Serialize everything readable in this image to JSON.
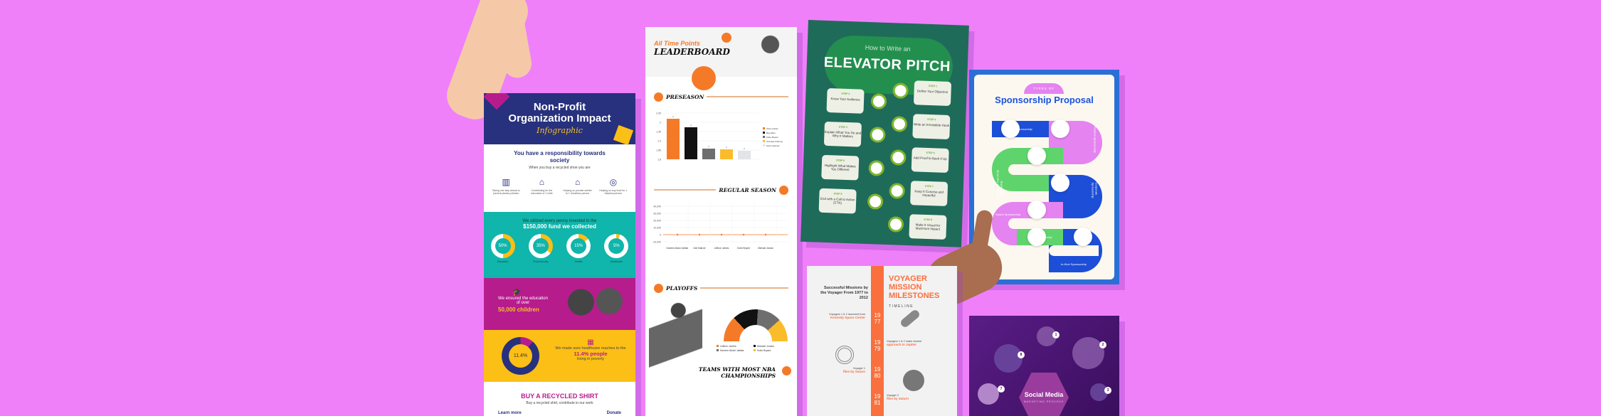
{
  "background_color": "#ef80f9",
  "nonprofit": {
    "title": "Non-Profit Organization Impact",
    "subtitle": "Infographic",
    "resp_heading": "You have a responsibility towards society",
    "resp_sub": "When you buy a recycled shoe you are",
    "actions": [
      "Taking one step ahead to prevent plastic pollution",
      "Contributing for the education of 1 child",
      "Helping us provide shelter to 1 homeless person",
      "Helping us buy food for 1 helpless person"
    ],
    "fund_line1": "We utilized every penny invested in the",
    "fund_line2": "$150,000 fund we collected",
    "donuts": [
      {
        "label": "Education",
        "value": "50%",
        "pct": 50
      },
      {
        "label": "Food security",
        "value": "35%",
        "pct": 35
      },
      {
        "label": "Shelter",
        "value": "15%",
        "pct": 15
      },
      {
        "label": "Healthcare",
        "value": "5%",
        "pct": 5
      }
    ],
    "edu_line": "We ensured the education of over",
    "edu_big": "50,000 children",
    "health_donut": "11.4%",
    "health_line": "We made sure healthcare reaches to the",
    "health_big": "11.4% people",
    "health_end": "living in poverty",
    "shirt_heading": "BUY A RECYCLED SHIRT",
    "shirt_sub": "Buy a recycled shirt, contribute in our work",
    "learn_more": "Learn more",
    "donate": "Donate"
  },
  "leaderboard": {
    "title_top": "All Time Points",
    "title": "LEADERBOARD",
    "preseason": "PRESEASON",
    "preseason_legend": [
      "Vince Carter",
      "Ray Allen",
      "Kobe Bryant",
      "Carmelo Anthony",
      "Kevin Garnett"
    ],
    "preseason_colors": [
      "#f57a28",
      "#111111",
      "#6e6e6e",
      "#fbbc2c",
      "#e2e4ea"
    ],
    "preseason_yticks": [
      "2.05",
      "2",
      "1.95",
      "1.9",
      "1.85",
      "1.8"
    ],
    "regular": "REGULAR SEASON",
    "regular_yticks": [
      "40,000",
      "30,000",
      "20,000",
      "10,000",
      "0",
      "-10,000"
    ],
    "regular_x": [
      "Kareem Abdul Jabbar",
      "Karl Malone",
      "LeBron James",
      "Kobe Bryant",
      "Michael Jordan"
    ],
    "playoffs": "PLAYOFFS",
    "playoffs_legend": [
      "LeBron James",
      "Michael Jordan",
      "Kareem Abdul Jabbar",
      "Kobe Bryant"
    ],
    "teams": "TEAMS WITH MOST NBA CHAMPIONSHIPS"
  },
  "elevator": {
    "title_small": "How to Write an",
    "title": "ELEVATOR PITCH",
    "steps": [
      {
        "n": "STEP 1",
        "t": "Define Your Objective"
      },
      {
        "n": "STEP 2",
        "t": "Know Your Audience"
      },
      {
        "n": "STEP 3",
        "t": "Write an Irresistible Hook"
      },
      {
        "n": "STEP 4",
        "t": "Explain What You Do and Why It Matters"
      },
      {
        "n": "STEP 5",
        "t": "Add Proof to Back It Up"
      },
      {
        "n": "STEP 6",
        "t": "Highlight What Makes You Different"
      },
      {
        "n": "STEP 7",
        "t": "Keep It Concise and Impactful"
      },
      {
        "n": "STEP 8",
        "t": "End with a Call to Action (CTA)"
      },
      {
        "n": "STEP 9",
        "t": "Make It Visual for Maximum Impact"
      }
    ]
  },
  "sponsorship": {
    "kicker": "TYPES OF",
    "title": "Sponsorship Proposal",
    "types": [
      "Event Sponsorship",
      "Product Sponsorship",
      "Charity Or Non-Profit Sponsorship",
      "Corporate Sponsorship",
      "Sports Sponsorship",
      "Media Sponsorship",
      "In-Kind Sponsorship"
    ]
  },
  "voyager": {
    "left_title": "Successful Missions by the Voyager From 1977 to 2012",
    "title": "VOYAGER MISSION MILESTONES",
    "subtitle": "TIMELINE",
    "years": [
      "19 77",
      "19 79",
      "19 80",
      "19 81"
    ],
    "events": [
      {
        "t": "Voyagers 1 & 2 launched from",
        "h": "Kennedy Space Center"
      },
      {
        "t": "Voyagers 1 & 2 make closest",
        "h": "approach to Jupiter"
      },
      {
        "t": "Voyager 1",
        "h": "flies by Saturn"
      },
      {
        "t": "Voyager 2",
        "h": "flies by Saturn"
      }
    ]
  },
  "social": {
    "title": "Social Media",
    "subtitle": "MARKETING PROCESS",
    "steps": [
      "1",
      "2",
      "3",
      "7",
      "8"
    ]
  }
}
